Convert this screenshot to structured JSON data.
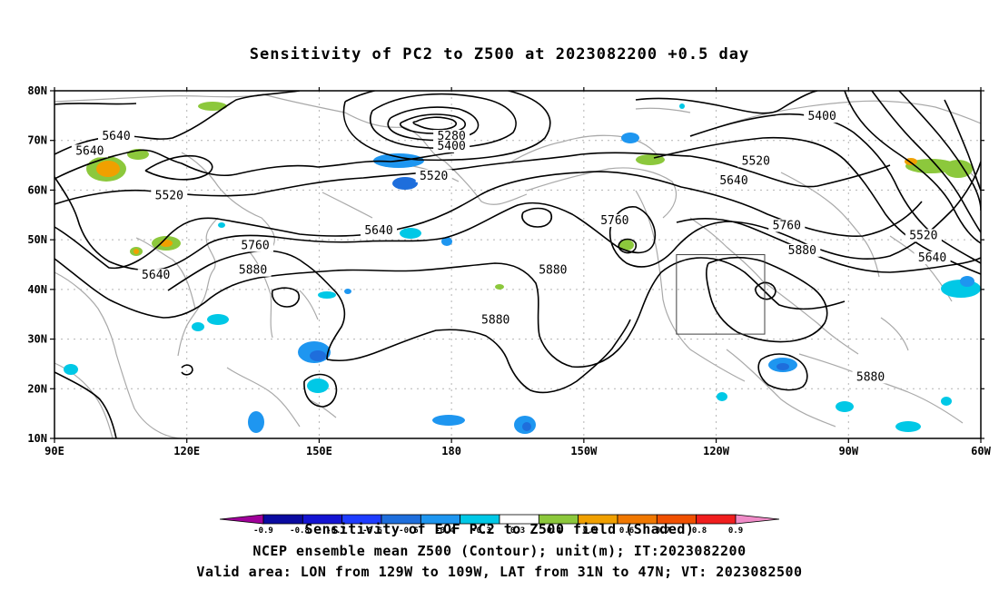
{
  "figure": {
    "title": "Sensitivity of PC2 to Z500 at 2023082200 +0.5 day",
    "caption_line1": "Sensitivity of EOF PC2 to Z500 field (Shaded)",
    "caption_line2": "NCEP ensemble mean Z500 (Contour); unit(m); IT:2023082200",
    "caption_line3": "Valid area: LON from 129W to 109W, LAT from 31N to 47N; VT: 2023082500"
  },
  "map": {
    "lon_range": [
      90,
      300
    ],
    "lat_range": [
      10,
      80
    ],
    "lon_ticks": [
      {
        "lon": 90,
        "label": "90E"
      },
      {
        "lon": 120,
        "label": "120E"
      },
      {
        "lon": 150,
        "label": "150E"
      },
      {
        "lon": 180,
        "label": "180"
      },
      {
        "lon": 210,
        "label": "150W"
      },
      {
        "lon": 240,
        "label": "120W"
      },
      {
        "lon": 270,
        "label": "90W"
      },
      {
        "lon": 300,
        "label": "60W"
      }
    ],
    "lat_ticks": [
      {
        "lat": 80,
        "label": "80N"
      },
      {
        "lat": 70,
        "label": "70N"
      },
      {
        "lat": 60,
        "label": "60N"
      },
      {
        "lat": 50,
        "label": "50N"
      },
      {
        "lat": 40,
        "label": "40N"
      },
      {
        "lat": 30,
        "label": "30N"
      },
      {
        "lat": 20,
        "label": "20N"
      },
      {
        "lat": 10,
        "label": "10N"
      }
    ],
    "valid_box": {
      "lon_min": 231,
      "lon_max": 251,
      "lat_min": 31,
      "lat_max": 47
    },
    "contour_labels": [
      {
        "text": "5640",
        "lon": 104,
        "lat": 70.5
      },
      {
        "text": "5640",
        "lon": 98,
        "lat": 67.5
      },
      {
        "text": "5520",
        "lon": 116,
        "lat": 58.5
      },
      {
        "text": "5640",
        "lon": 113,
        "lat": 42.5
      },
      {
        "text": "5760",
        "lon": 135.5,
        "lat": 48.5
      },
      {
        "text": "5880",
        "lon": 135,
        "lat": 43.5
      },
      {
        "text": "5280",
        "lon": 180,
        "lat": 70.5
      },
      {
        "text": "5400",
        "lon": 180,
        "lat": 68.5
      },
      {
        "text": "5520",
        "lon": 176,
        "lat": 62.5
      },
      {
        "text": "5640",
        "lon": 163.5,
        "lat": 51.5
      },
      {
        "text": "5760",
        "lon": 217,
        "lat": 53.5
      },
      {
        "text": "5880",
        "lon": 203,
        "lat": 43.5
      },
      {
        "text": "5880",
        "lon": 190,
        "lat": 33.5
      },
      {
        "text": "5400",
        "lon": 264,
        "lat": 74.5
      },
      {
        "text": "5520",
        "lon": 249,
        "lat": 65.5
      },
      {
        "text": "5640",
        "lon": 244,
        "lat": 61.5
      },
      {
        "text": "5760",
        "lon": 256,
        "lat": 52.5
      },
      {
        "text": "5880",
        "lon": 259.5,
        "lat": 47.5
      },
      {
        "text": "5520",
        "lon": 287,
        "lat": 50.5
      },
      {
        "text": "5640",
        "lon": 289,
        "lat": 46
      },
      {
        "text": "5880",
        "lon": 275,
        "lat": 22
      }
    ]
  },
  "colorbar": {
    "ticks": [
      "-0.9",
      "-0.8",
      "-0.7",
      "-0.6",
      "-0.5",
      "-0.4",
      "-0.3",
      "0.3",
      "0.4",
      "0.5",
      "0.6",
      "0.7",
      "0.8",
      "0.9"
    ],
    "colors": [
      "#a0009a",
      "#0a0aa0",
      "#1414d2",
      "#1e3cff",
      "#1e6edc",
      "#1e96f0",
      "#00c8e6",
      "#ffffff",
      "#8cc83c",
      "#f0a000",
      "#f07800",
      "#f05000",
      "#f01e1e",
      "#f08cc8"
    ]
  },
  "colors": {
    "contour": "#000000",
    "coastline": "#a9a9a9",
    "grid": "#b4b4b4",
    "frame": "#000000"
  }
}
